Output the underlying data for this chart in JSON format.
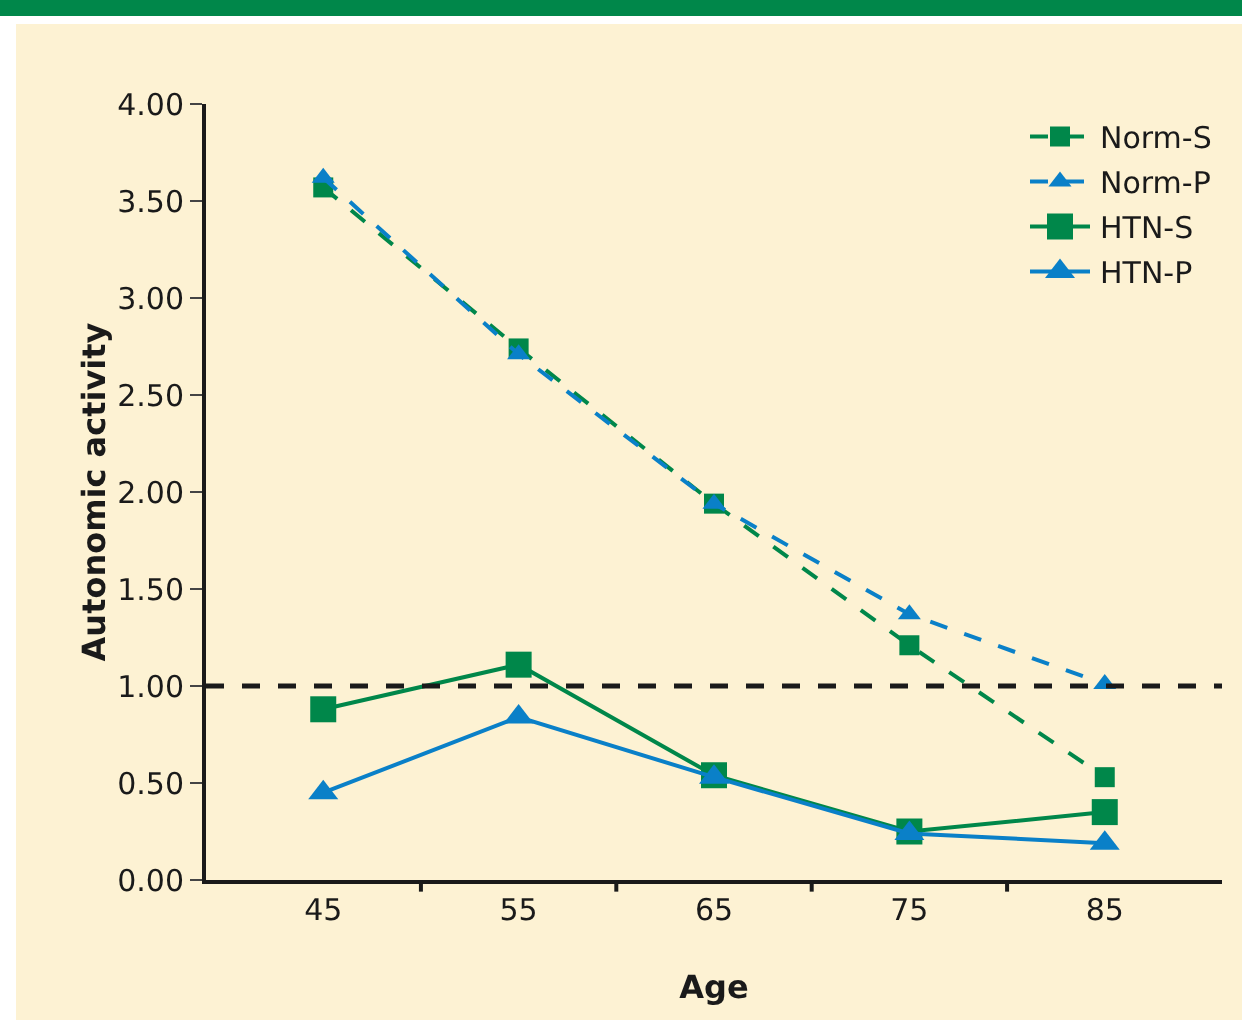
{
  "chart_data": {
    "type": "line",
    "xlabel": "Age",
    "ylabel": "Autonomic activity",
    "categories": [
      "45",
      "55",
      "65",
      "75",
      "85"
    ],
    "ylim": [
      0,
      4
    ],
    "yticks": [
      {
        "value": 0,
        "label": "0.00"
      },
      {
        "value": 0.5,
        "label": "0.50"
      },
      {
        "value": 1,
        "label": "1.00"
      },
      {
        "value": 1.5,
        "label": "1.50"
      },
      {
        "value": 2,
        "label": "2.00"
      },
      {
        "value": 2.5,
        "label": "2.50"
      },
      {
        "value": 3,
        "label": "3.00"
      },
      {
        "value": 3.5,
        "label": "3.50"
      },
      {
        "value": 4,
        "label": "4.00"
      }
    ],
    "grid": false,
    "legend": "top right",
    "ref_lines": [
      {
        "axis": "y",
        "value": 1,
        "color": "#1a1a1a",
        "line_style": "dashed"
      }
    ],
    "series": [
      {
        "name": "Norm-S",
        "color": "#00874a",
        "marker": "square",
        "line_style": "dashed",
        "values": [
          3.57,
          2.74,
          1.94,
          1.21,
          0.53
        ]
      },
      {
        "name": "Norm-P",
        "color": "#0a80c8",
        "marker": "triangle",
        "line_style": "dashed",
        "values": [
          3.62,
          2.71,
          1.94,
          1.37,
          1.01
        ]
      },
      {
        "name": "HTN-S",
        "color": "#00874a",
        "marker": "square",
        "line_style": "solid",
        "values": [
          0.88,
          1.11,
          0.54,
          0.25,
          0.35
        ]
      },
      {
        "name": "HTN-P",
        "color": "#0a80c8",
        "marker": "triangle",
        "line_style": "solid",
        "values": [
          0.45,
          0.84,
          0.53,
          0.24,
          0.19
        ]
      }
    ]
  }
}
